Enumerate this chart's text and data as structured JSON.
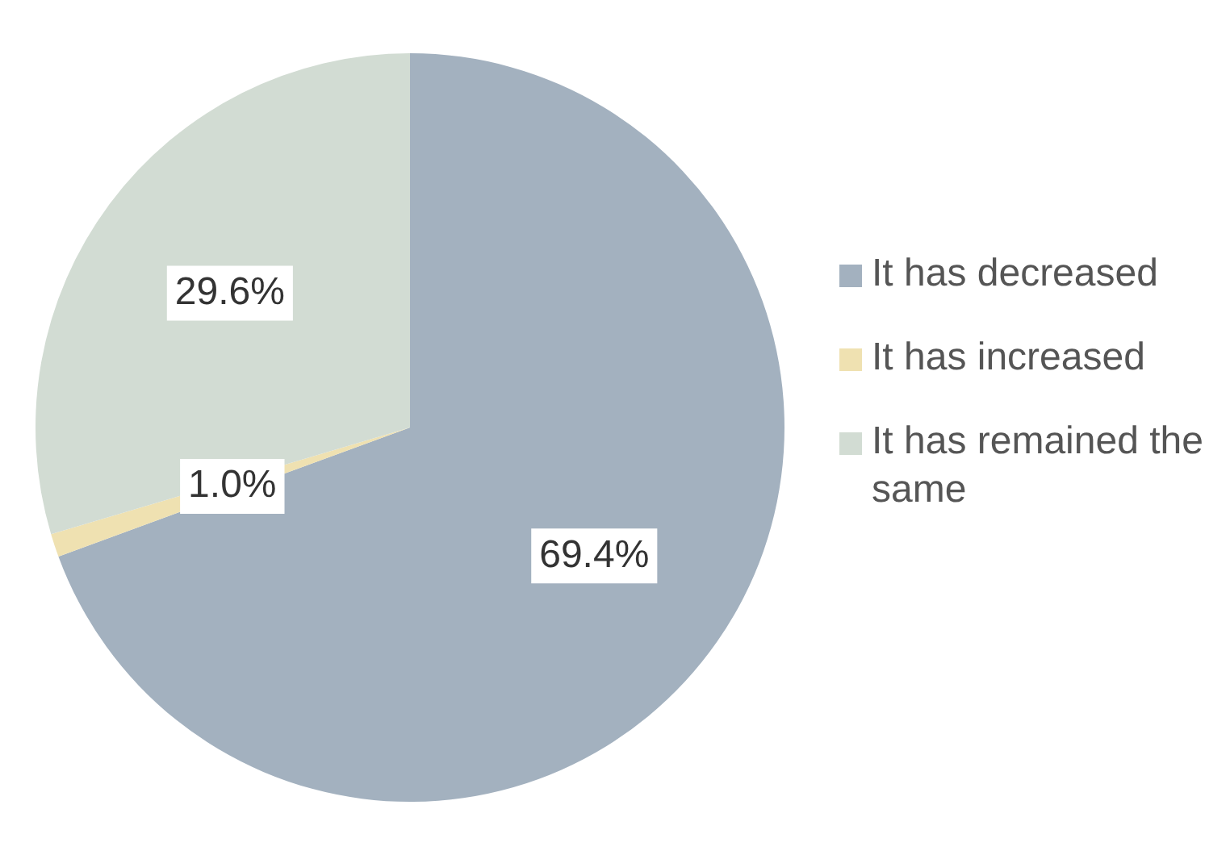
{
  "chart_data": {
    "type": "pie",
    "categories": [
      "It has decreased",
      "It has increased",
      "It has remained the same"
    ],
    "values": [
      69.4,
      1.0,
      29.6
    ],
    "colors": [
      "#a3b1bf",
      "#efe1b1",
      "#d2dcd3"
    ],
    "value_labels": [
      "69.4%",
      "1.0%",
      "29.6%"
    ],
    "legend": "right"
  }
}
